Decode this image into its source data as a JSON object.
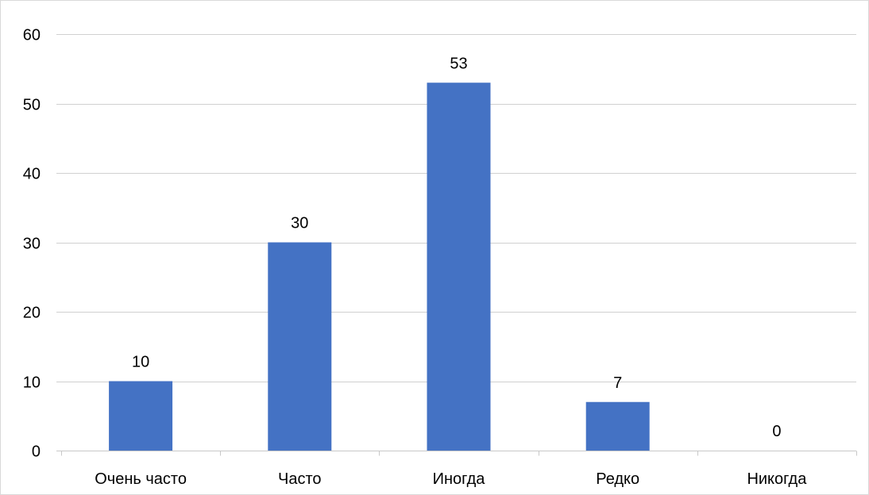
{
  "chart_data": {
    "type": "bar",
    "categories": [
      "Очень часто",
      "Часто",
      "Иногда",
      "Редко",
      "Никогда"
    ],
    "values": [
      10,
      30,
      53,
      7,
      0
    ],
    "data_labels": [
      "10",
      "30",
      "53",
      "7",
      "0"
    ],
    "title": "",
    "xlabel": "",
    "ylabel": "",
    "ylim": [
      0,
      60
    ],
    "yticks": [
      0,
      10,
      20,
      30,
      40,
      50,
      60
    ],
    "ytick_labels": [
      "0",
      "10",
      "20",
      "30",
      "40",
      "50",
      "60"
    ],
    "grid": true,
    "legend": "none",
    "colors": {
      "bar": "#4472c4",
      "gridline": "#d0d0d0",
      "axis": "#c8c8c8",
      "text": "#000000"
    }
  }
}
